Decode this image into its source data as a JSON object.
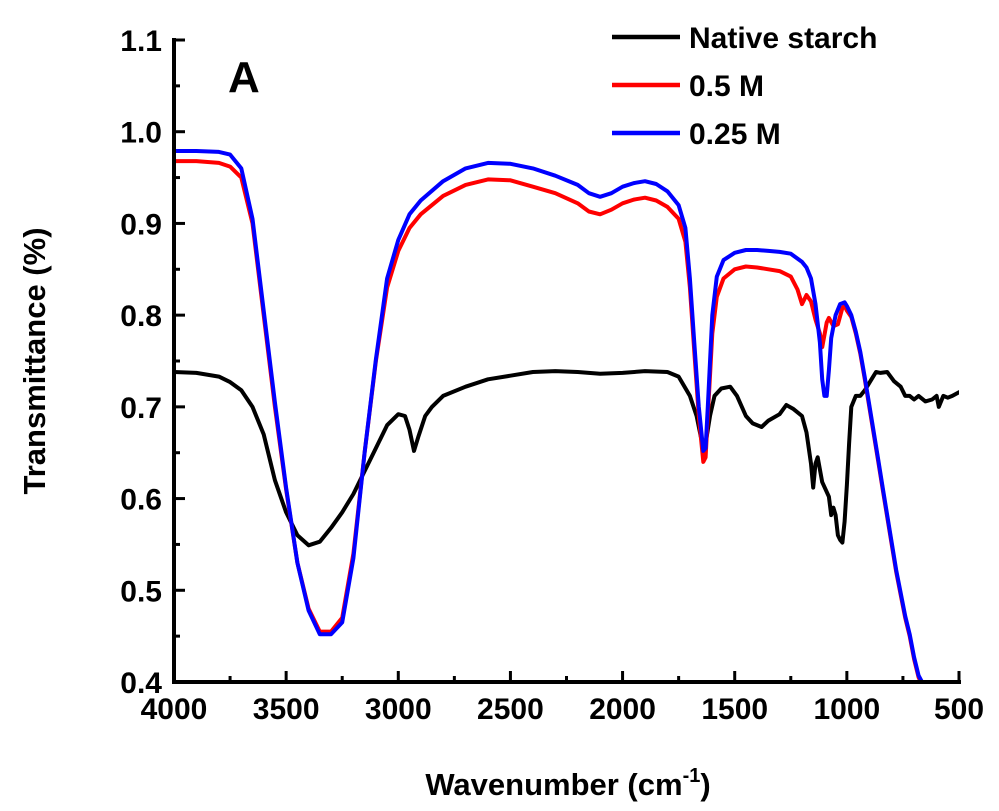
{
  "chart_data": {
    "type": "line",
    "panel_label": "A",
    "xlabel": "Wavenumber (cm",
    "xlabel_sup": "-1",
    "xlabel_close": ")",
    "ylabel": "Transmittance (%)",
    "xlim": [
      4000,
      500
    ],
    "ylim": [
      0.4,
      1.1
    ],
    "x_ticks": [
      4000,
      3500,
      3000,
      2500,
      2000,
      1500,
      1000,
      500
    ],
    "x_tick_labels": [
      "4000",
      "3500",
      "3000",
      "2500",
      "2000",
      "1500",
      "1000",
      "500"
    ],
    "y_ticks": [
      0.4,
      0.5,
      0.6,
      0.7,
      0.8,
      0.9,
      1.0,
      1.1
    ],
    "y_tick_labels": [
      "0.4",
      "0.5",
      "0.6",
      "0.7",
      "0.8",
      "0.9",
      "1.0",
      "1.1"
    ],
    "legend_position": "top-right",
    "grid": false,
    "series": [
      {
        "name": "Native starch",
        "color": "#000000",
        "points": [
          [
            4000,
            0.738
          ],
          [
            3900,
            0.737
          ],
          [
            3800,
            0.733
          ],
          [
            3750,
            0.727
          ],
          [
            3700,
            0.718
          ],
          [
            3650,
            0.7
          ],
          [
            3600,
            0.67
          ],
          [
            3550,
            0.62
          ],
          [
            3500,
            0.585
          ],
          [
            3450,
            0.56
          ],
          [
            3400,
            0.549
          ],
          [
            3350,
            0.553
          ],
          [
            3300,
            0.568
          ],
          [
            3250,
            0.585
          ],
          [
            3200,
            0.605
          ],
          [
            3150,
            0.63
          ],
          [
            3100,
            0.655
          ],
          [
            3050,
            0.68
          ],
          [
            3000,
            0.692
          ],
          [
            2970,
            0.69
          ],
          [
            2950,
            0.675
          ],
          [
            2930,
            0.652
          ],
          [
            2910,
            0.668
          ],
          [
            2880,
            0.69
          ],
          [
            2850,
            0.7
          ],
          [
            2800,
            0.712
          ],
          [
            2700,
            0.722
          ],
          [
            2600,
            0.73
          ],
          [
            2500,
            0.734
          ],
          [
            2400,
            0.738
          ],
          [
            2300,
            0.739
          ],
          [
            2200,
            0.738
          ],
          [
            2100,
            0.736
          ],
          [
            2000,
            0.737
          ],
          [
            1900,
            0.739
          ],
          [
            1800,
            0.738
          ],
          [
            1750,
            0.733
          ],
          [
            1700,
            0.712
          ],
          [
            1670,
            0.69
          ],
          [
            1645,
            0.66
          ],
          [
            1630,
            0.66
          ],
          [
            1610,
            0.69
          ],
          [
            1590,
            0.712
          ],
          [
            1560,
            0.72
          ],
          [
            1520,
            0.722
          ],
          [
            1490,
            0.712
          ],
          [
            1450,
            0.69
          ],
          [
            1420,
            0.682
          ],
          [
            1380,
            0.678
          ],
          [
            1350,
            0.685
          ],
          [
            1300,
            0.692
          ],
          [
            1270,
            0.702
          ],
          [
            1240,
            0.698
          ],
          [
            1200,
            0.69
          ],
          [
            1180,
            0.672
          ],
          [
            1160,
            0.638
          ],
          [
            1150,
            0.612
          ],
          [
            1140,
            0.638
          ],
          [
            1130,
            0.645
          ],
          [
            1110,
            0.618
          ],
          [
            1080,
            0.602
          ],
          [
            1070,
            0.582
          ],
          [
            1060,
            0.59
          ],
          [
            1050,
            0.582
          ],
          [
            1040,
            0.56
          ],
          [
            1030,
            0.555
          ],
          [
            1020,
            0.552
          ],
          [
            1010,
            0.575
          ],
          [
            1000,
            0.615
          ],
          [
            990,
            0.66
          ],
          [
            980,
            0.7
          ],
          [
            960,
            0.712
          ],
          [
            940,
            0.712
          ],
          [
            920,
            0.718
          ],
          [
            890,
            0.73
          ],
          [
            870,
            0.738
          ],
          [
            850,
            0.737
          ],
          [
            820,
            0.738
          ],
          [
            790,
            0.728
          ],
          [
            760,
            0.722
          ],
          [
            740,
            0.712
          ],
          [
            720,
            0.712
          ],
          [
            700,
            0.708
          ],
          [
            680,
            0.712
          ],
          [
            650,
            0.706
          ],
          [
            620,
            0.708
          ],
          [
            600,
            0.712
          ],
          [
            590,
            0.7
          ],
          [
            570,
            0.712
          ],
          [
            550,
            0.71
          ],
          [
            530,
            0.712
          ],
          [
            500,
            0.716
          ]
        ]
      },
      {
        "name": "0.5 M",
        "color": "#ff0000",
        "points": [
          [
            4000,
            0.968
          ],
          [
            3900,
            0.968
          ],
          [
            3800,
            0.966
          ],
          [
            3750,
            0.962
          ],
          [
            3700,
            0.95
          ],
          [
            3650,
            0.9
          ],
          [
            3600,
            0.8
          ],
          [
            3550,
            0.7
          ],
          [
            3500,
            0.61
          ],
          [
            3450,
            0.53
          ],
          [
            3400,
            0.48
          ],
          [
            3350,
            0.455
          ],
          [
            3300,
            0.455
          ],
          [
            3250,
            0.47
          ],
          [
            3200,
            0.54
          ],
          [
            3150,
            0.65
          ],
          [
            3100,
            0.75
          ],
          [
            3050,
            0.83
          ],
          [
            3000,
            0.87
          ],
          [
            2950,
            0.895
          ],
          [
            2900,
            0.91
          ],
          [
            2800,
            0.93
          ],
          [
            2700,
            0.942
          ],
          [
            2600,
            0.948
          ],
          [
            2500,
            0.947
          ],
          [
            2400,
            0.94
          ],
          [
            2300,
            0.933
          ],
          [
            2200,
            0.922
          ],
          [
            2150,
            0.913
          ],
          [
            2100,
            0.91
          ],
          [
            2050,
            0.915
          ],
          [
            2000,
            0.922
          ],
          [
            1950,
            0.926
          ],
          [
            1900,
            0.928
          ],
          [
            1850,
            0.925
          ],
          [
            1800,
            0.918
          ],
          [
            1750,
            0.905
          ],
          [
            1720,
            0.88
          ],
          [
            1700,
            0.83
          ],
          [
            1680,
            0.76
          ],
          [
            1660,
            0.69
          ],
          [
            1640,
            0.64
          ],
          [
            1630,
            0.645
          ],
          [
            1620,
            0.69
          ],
          [
            1600,
            0.78
          ],
          [
            1580,
            0.82
          ],
          [
            1550,
            0.84
          ],
          [
            1500,
            0.85
          ],
          [
            1450,
            0.853
          ],
          [
            1400,
            0.852
          ],
          [
            1350,
            0.85
          ],
          [
            1300,
            0.848
          ],
          [
            1250,
            0.842
          ],
          [
            1220,
            0.828
          ],
          [
            1200,
            0.812
          ],
          [
            1180,
            0.822
          ],
          [
            1160,
            0.815
          ],
          [
            1140,
            0.795
          ],
          [
            1120,
            0.78
          ],
          [
            1110,
            0.765
          ],
          [
            1100,
            0.778
          ],
          [
            1090,
            0.792
          ],
          [
            1080,
            0.797
          ],
          [
            1060,
            0.788
          ],
          [
            1040,
            0.79
          ],
          [
            1020,
            0.808
          ],
          [
            1010,
            0.81
          ],
          [
            1000,
            0.805
          ],
          [
            980,
            0.798
          ],
          [
            960,
            0.78
          ],
          [
            940,
            0.758
          ],
          [
            920,
            0.73
          ],
          [
            900,
            0.7
          ],
          [
            880,
            0.67
          ],
          [
            860,
            0.64
          ],
          [
            840,
            0.61
          ],
          [
            820,
            0.58
          ],
          [
            800,
            0.55
          ],
          [
            780,
            0.52
          ],
          [
            760,
            0.495
          ],
          [
            740,
            0.47
          ],
          [
            720,
            0.45
          ],
          [
            700,
            0.425
          ],
          [
            680,
            0.405
          ],
          [
            670,
            0.4
          ]
        ]
      },
      {
        "name": "0.25 M",
        "color": "#0000ff",
        "points": [
          [
            4000,
            0.979
          ],
          [
            3900,
            0.979
          ],
          [
            3800,
            0.978
          ],
          [
            3750,
            0.975
          ],
          [
            3700,
            0.96
          ],
          [
            3650,
            0.905
          ],
          [
            3600,
            0.805
          ],
          [
            3550,
            0.705
          ],
          [
            3500,
            0.612
          ],
          [
            3450,
            0.53
          ],
          [
            3400,
            0.478
          ],
          [
            3350,
            0.452
          ],
          [
            3300,
            0.452
          ],
          [
            3250,
            0.465
          ],
          [
            3200,
            0.535
          ],
          [
            3150,
            0.65
          ],
          [
            3100,
            0.752
          ],
          [
            3050,
            0.84
          ],
          [
            3000,
            0.882
          ],
          [
            2950,
            0.91
          ],
          [
            2900,
            0.925
          ],
          [
            2800,
            0.946
          ],
          [
            2700,
            0.96
          ],
          [
            2600,
            0.966
          ],
          [
            2500,
            0.965
          ],
          [
            2400,
            0.96
          ],
          [
            2300,
            0.952
          ],
          [
            2200,
            0.942
          ],
          [
            2150,
            0.933
          ],
          [
            2100,
            0.929
          ],
          [
            2050,
            0.933
          ],
          [
            2000,
            0.94
          ],
          [
            1950,
            0.944
          ],
          [
            1900,
            0.946
          ],
          [
            1850,
            0.943
          ],
          [
            1800,
            0.935
          ],
          [
            1750,
            0.92
          ],
          [
            1720,
            0.895
          ],
          [
            1700,
            0.84
          ],
          [
            1680,
            0.77
          ],
          [
            1660,
            0.7
          ],
          [
            1640,
            0.652
          ],
          [
            1630,
            0.655
          ],
          [
            1620,
            0.7
          ],
          [
            1600,
            0.8
          ],
          [
            1580,
            0.842
          ],
          [
            1550,
            0.86
          ],
          [
            1500,
            0.868
          ],
          [
            1450,
            0.871
          ],
          [
            1400,
            0.871
          ],
          [
            1350,
            0.87
          ],
          [
            1300,
            0.869
          ],
          [
            1250,
            0.867
          ],
          [
            1200,
            0.858
          ],
          [
            1180,
            0.852
          ],
          [
            1160,
            0.84
          ],
          [
            1140,
            0.812
          ],
          [
            1120,
            0.77
          ],
          [
            1110,
            0.73
          ],
          [
            1100,
            0.712
          ],
          [
            1090,
            0.712
          ],
          [
            1080,
            0.74
          ],
          [
            1070,
            0.775
          ],
          [
            1050,
            0.8
          ],
          [
            1030,
            0.812
          ],
          [
            1010,
            0.814
          ],
          [
            1000,
            0.81
          ],
          [
            980,
            0.8
          ],
          [
            960,
            0.782
          ],
          [
            940,
            0.76
          ],
          [
            920,
            0.732
          ],
          [
            900,
            0.702
          ],
          [
            880,
            0.672
          ],
          [
            860,
            0.642
          ],
          [
            840,
            0.612
          ],
          [
            820,
            0.582
          ],
          [
            800,
            0.552
          ],
          [
            780,
            0.522
          ],
          [
            760,
            0.497
          ],
          [
            740,
            0.472
          ],
          [
            720,
            0.452
          ],
          [
            700,
            0.427
          ],
          [
            680,
            0.407
          ],
          [
            665,
            0.4
          ]
        ]
      }
    ]
  }
}
